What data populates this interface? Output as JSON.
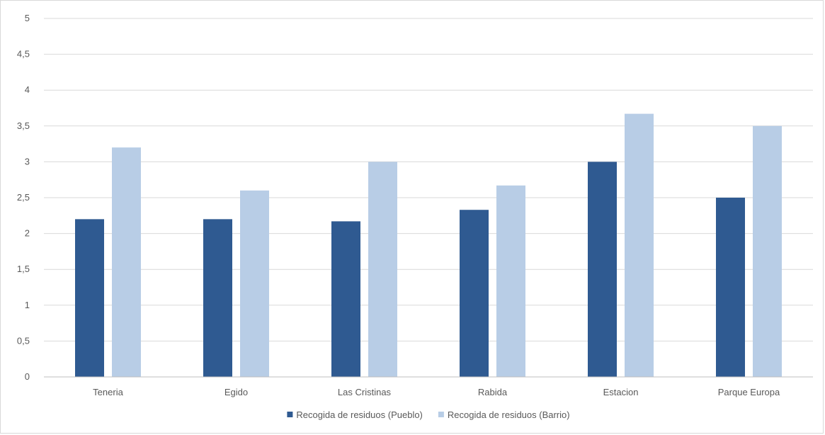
{
  "chart_data": {
    "type": "bar",
    "categories": [
      "Teneria",
      "Egido",
      "Las Cristinas",
      "Rabida",
      "Estacion",
      "Parque Europa"
    ],
    "series": [
      {
        "name": "Recogida de residuos (Pueblo)",
        "values": [
          2.2,
          2.2,
          2.17,
          2.33,
          3.0,
          2.5
        ],
        "color": "#2f5a91"
      },
      {
        "name": "Recogida de residuos (Barrio)",
        "values": [
          3.2,
          2.6,
          3.0,
          2.67,
          3.67,
          3.5
        ],
        "color": "#b8cde6"
      }
    ],
    "title": "",
    "xlabel": "",
    "ylabel": "",
    "ylim": [
      0,
      5
    ],
    "yticks": [
      "0",
      "0,5",
      "1",
      "1,5",
      "2",
      "2,5",
      "3",
      "3,5",
      "4",
      "4,5",
      "5"
    ],
    "grid": true,
    "legend_position": "bottom"
  },
  "colors": {
    "gridline": "#d9d9d9",
    "axis": "#bfbfbf",
    "text": "#595959"
  }
}
